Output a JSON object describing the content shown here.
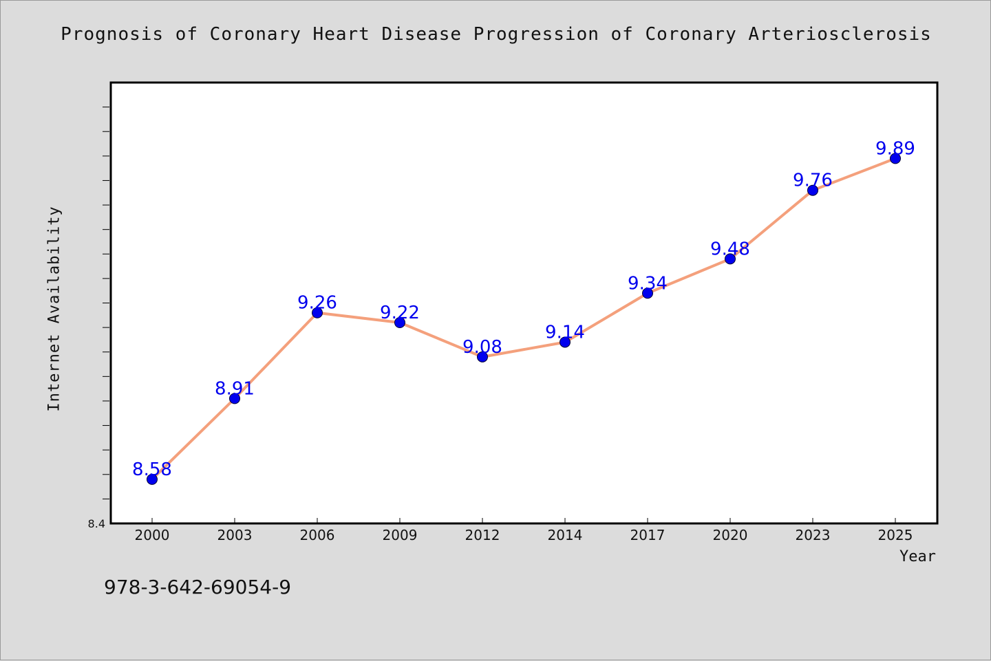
{
  "colors": {
    "background": "#dcdcdc",
    "plot_background": "#ffffff",
    "line": "#f4a07c",
    "marker": "#0000ee",
    "data_label": "#0000ee"
  },
  "footer_text": "978-3-642-69054-9",
  "chart_data": {
    "type": "line",
    "title": "Prognosis of Coronary Heart Disease Progression of Coronary Arteriosclerosis",
    "xlabel": "Year",
    "ylabel": "Internet Availability",
    "categories": [
      "2000",
      "2003",
      "2006",
      "2009",
      "2012",
      "2014",
      "2017",
      "2020",
      "2023",
      "2025"
    ],
    "series": [
      {
        "values": [
          8.58,
          8.91,
          9.26,
          9.22,
          9.08,
          9.14,
          9.34,
          9.48,
          9.76,
          9.89
        ]
      }
    ],
    "data_labels": [
      "8.58",
      "8.91",
      "9.26",
      "9.22",
      "9.08",
      "9.14",
      "9.34",
      "9.48",
      "9.76",
      "9.89"
    ],
    "ylim": [
      8.4,
      10.2
    ],
    "y_tick_labels": [
      "8.4"
    ],
    "y_minor_tick_step": 0.1,
    "grid": false,
    "legend": "none"
  }
}
